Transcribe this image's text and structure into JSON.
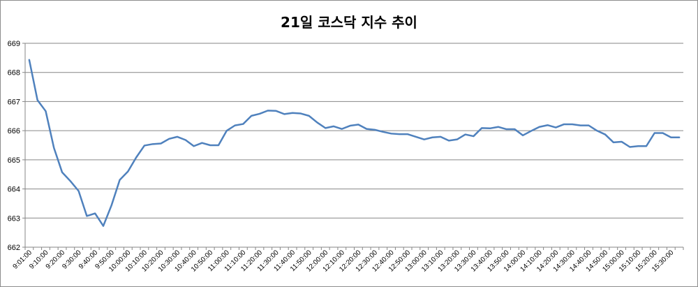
{
  "chart_data": {
    "type": "line",
    "title": "21일 코스닥 지수 추이",
    "xlabel": "",
    "ylabel": "",
    "ylim": [
      662,
      669
    ],
    "yticks": [
      "662",
      "663",
      "664",
      "665",
      "666",
      "667",
      "668",
      "669"
    ],
    "grid": true,
    "legend": "none",
    "line_color": "#4f81bd",
    "grid_color": "#868686",
    "x": [
      "9:01:00",
      "9:05:00",
      "9:10:00",
      "9:15:00",
      "9:20:00",
      "9:25:00",
      "9:30:00",
      "9:35:00",
      "9:40:00",
      "9:45:00",
      "9:50:00",
      "9:55:00",
      "10:00:00",
      "10:05:00",
      "10:10:00",
      "10:15:00",
      "10:20:00",
      "10:25:00",
      "10:30:00",
      "10:35:00",
      "10:40:00",
      "10:45:00",
      "10:50:00",
      "10:55:00",
      "11:00:00",
      "11:05:00",
      "11:10:00",
      "11:15:00",
      "11:20:00",
      "11:25:00",
      "11:30:00",
      "11:35:00",
      "11:40:00",
      "11:45:00",
      "11:50:00",
      "11:55:00",
      "12:00:00",
      "12:05:00",
      "12:10:00",
      "12:15:00",
      "12:20:00",
      "12:25:00",
      "12:30:00",
      "12:35:00",
      "12:40:00",
      "12:45:00",
      "12:50:00",
      "12:55:00",
      "13:00:00",
      "13:05:00",
      "13:10:00",
      "13:15:00",
      "13:20:00",
      "13:25:00",
      "13:30:00",
      "13:35:00",
      "13:40:00",
      "13:45:00",
      "13:50:00",
      "13:55:00",
      "14:00:00",
      "14:05:00",
      "14:10:00",
      "14:15:00",
      "14:20:00",
      "14:25:00",
      "14:30:00",
      "14:35:00",
      "14:40:00",
      "14:45:00",
      "14:50:00",
      "14:55:00",
      "15:00:00",
      "15:05:00",
      "15:10:00",
      "15:15:00",
      "15:20:00",
      "15:25:00",
      "15:30:00",
      "15:35:00"
    ],
    "x_tick_labels": [
      "9:01:00",
      "9:10:00",
      "9:20:00",
      "9:30:00",
      "9:40:00",
      "9:50:00",
      "10:00:00",
      "10:10:00",
      "10:20:00",
      "10:30:00",
      "10:40:00",
      "10:50:00",
      "11:00:00",
      "11:10:00",
      "11:20:00",
      "11:30:00",
      "11:40:00",
      "11:50:00",
      "12:00:00",
      "12:10:00",
      "12:20:00",
      "12:30:00",
      "12:40:00",
      "12:50:00",
      "13:00:00",
      "13:10:00",
      "13:20:00",
      "13:30:00",
      "13:40:00",
      "13:50:00",
      "14:00:00",
      "14:10:00",
      "14:20:00",
      "14:30:00",
      "14:40:00",
      "14:50:00",
      "15:00:00",
      "15:10:00",
      "15:20:00",
      "15:30:00"
    ],
    "series": [
      {
        "values": [
          668.43,
          667.05,
          666.67,
          665.41,
          664.57,
          664.27,
          663.93,
          663.07,
          663.16,
          662.73,
          663.44,
          664.31,
          664.6,
          665.08,
          665.49,
          665.54,
          665.56,
          665.72,
          665.79,
          665.68,
          665.47,
          665.58,
          665.5,
          665.5,
          666.0,
          666.18,
          666.23,
          666.51,
          666.58,
          666.69,
          666.68,
          666.57,
          666.61,
          666.59,
          666.51,
          666.28,
          666.09,
          666.15,
          666.06,
          666.17,
          666.21,
          666.06,
          666.03,
          665.96,
          665.9,
          665.88,
          665.88,
          665.79,
          665.7,
          665.77,
          665.79,
          665.66,
          665.7,
          665.87,
          665.81,
          666.09,
          666.08,
          666.13,
          666.05,
          666.05,
          665.84,
          665.99,
          666.13,
          666.19,
          666.11,
          666.22,
          666.22,
          666.18,
          666.18,
          666.0,
          665.87,
          665.6,
          665.62,
          665.44,
          665.47,
          665.47,
          665.92,
          665.92,
          665.77,
          665.77
        ]
      }
    ]
  }
}
